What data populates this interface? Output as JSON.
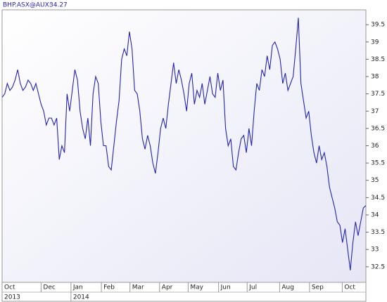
{
  "chart_data": {
    "type": "line",
    "title": "BHP.ASX@AUX:",
    "color": "#2424b4",
    "values": [
      37.4,
      37.5,
      37.8,
      37.6,
      37.7,
      37.9,
      38.2,
      37.8,
      37.6,
      37.7,
      37.9,
      37.8,
      37.6,
      37.8,
      37.5,
      37.2,
      37.0,
      36.6,
      36.8,
      36.8,
      36.6,
      36.8,
      35.6,
      36.0,
      35.8,
      37.5,
      37.0,
      37.6,
      38.2,
      37.9,
      37.0,
      36.5,
      36.2,
      36.8,
      36.0,
      37.5,
      38.0,
      37.8,
      36.7,
      36.0,
      36.0,
      35.4,
      35.3,
      36.0,
      36.7,
      37.3,
      38.5,
      38.8,
      38.6,
      39.3,
      38.8,
      37.6,
      37.5,
      37.0,
      36.2,
      35.9,
      36.3,
      36.0,
      35.5,
      35.2,
      35.8,
      36.5,
      36.8,
      36.5,
      37.2,
      37.8,
      38.4,
      37.8,
      38.2,
      37.9,
      37.5,
      37.0,
      37.8,
      38.1,
      37.2,
      37.6,
      37.4,
      37.8,
      37.2,
      37.6,
      38.0,
      37.5,
      37.4,
      38.1,
      37.6,
      37.9,
      36.5,
      36.0,
      36.2,
      35.4,
      35.3,
      35.8,
      36.2,
      36.3,
      35.8,
      36.5,
      36.0,
      37.0,
      37.8,
      37.6,
      38.2,
      38.0,
      38.6,
      38.2,
      38.9,
      39.0,
      38.8,
      38.5,
      37.8,
      38.1,
      37.6,
      37.8,
      38.0,
      38.8,
      39.7,
      37.8,
      37.3,
      36.8,
      37.0,
      36.3,
      35.8,
      35.5,
      36.0,
      35.6,
      35.8,
      35.4,
      34.8,
      34.5,
      34.2,
      33.8,
      33.7,
      33.2,
      33.6,
      33.0,
      32.4,
      33.2,
      33.8,
      33.4,
      33.8,
      34.2,
      34.27
    ],
    "xlim": [
      0,
      140
    ],
    "xticks": [
      {
        "value": 0,
        "label": "Oct"
      },
      {
        "value": 15,
        "label": "Dec"
      },
      {
        "value": 26.5,
        "label": "Jan"
      },
      {
        "value": 38.2,
        "label": "Feb"
      },
      {
        "value": 49.2,
        "label": "Mar"
      },
      {
        "value": 60.6,
        "label": "Apr"
      },
      {
        "value": 71.6,
        "label": "May"
      },
      {
        "value": 83.3,
        "label": "Jun"
      },
      {
        "value": 94.3,
        "label": "Jul"
      },
      {
        "value": 106.8,
        "label": "Aug"
      },
      {
        "value": 118.3,
        "label": "Sep"
      },
      {
        "value": 130.9,
        "label": "Oct"
      }
    ],
    "year_ticks": [
      {
        "value": 0,
        "label": "2013"
      },
      {
        "value": 26.5,
        "label": "2014"
      }
    ],
    "ylim": [
      32.05,
      39.93
    ],
    "yticks": [
      32.5,
      33,
      33.5,
      34,
      34.5,
      35,
      35.5,
      36,
      36.5,
      37,
      37.5,
      38,
      38.5,
      39,
      39.5
    ]
  }
}
